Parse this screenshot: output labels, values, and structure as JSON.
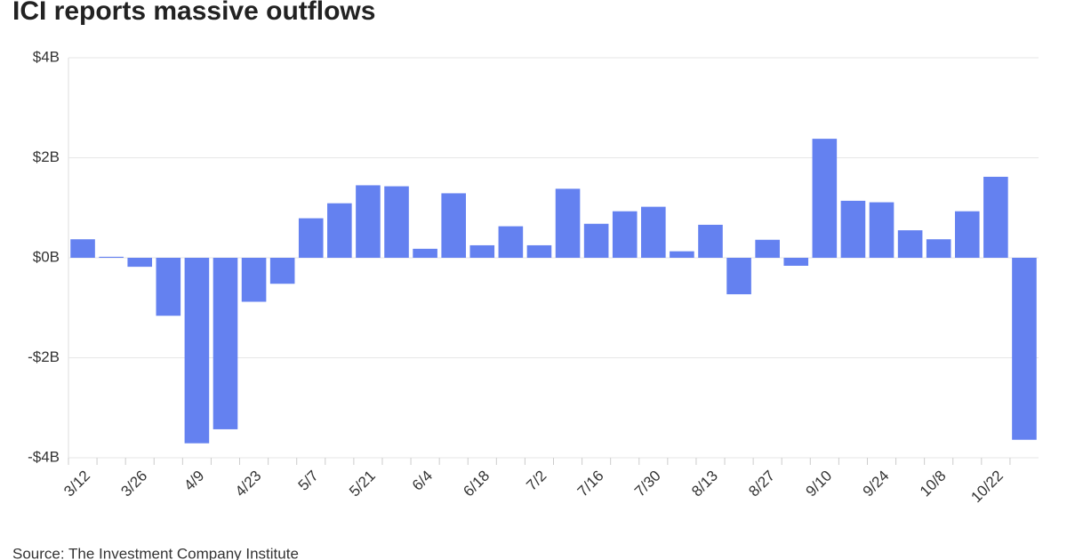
{
  "chart_data": {
    "type": "bar",
    "title": "ICI reports massive outflows",
    "source": "Source: The Investment Company Institute",
    "categories": [
      "3/12",
      null,
      "3/26",
      null,
      "4/9",
      null,
      "4/23",
      null,
      "5/7",
      null,
      "5/21",
      null,
      "6/4",
      null,
      "6/18",
      null,
      "7/2",
      null,
      "7/16",
      null,
      "7/30",
      null,
      "8/13",
      null,
      "8/27",
      null,
      "9/10",
      null,
      "9/24",
      null,
      "10/8",
      null,
      "10/22",
      null
    ],
    "values": [
      0.37,
      0.02,
      -0.18,
      -1.16,
      -3.71,
      -3.43,
      -0.88,
      -0.52,
      0.79,
      1.09,
      1.45,
      1.43,
      0.18,
      1.29,
      0.25,
      0.63,
      0.25,
      1.38,
      0.68,
      0.93,
      1.02,
      0.13,
      0.66,
      -0.73,
      0.36,
      -0.16,
      2.38,
      1.14,
      1.11,
      0.55,
      0.37,
      0.93,
      1.62,
      -3.64
    ],
    "color": "#6481f0",
    "ylim": [
      -4,
      4
    ],
    "yticks": [
      {
        "value": -4,
        "label": "-$4B"
      },
      {
        "value": -2,
        "label": "-$2B"
      },
      {
        "value": 0,
        "label": "$0B"
      },
      {
        "value": 2,
        "label": "$2B"
      },
      {
        "value": 4,
        "label": "$4B"
      }
    ],
    "grid": true
  }
}
